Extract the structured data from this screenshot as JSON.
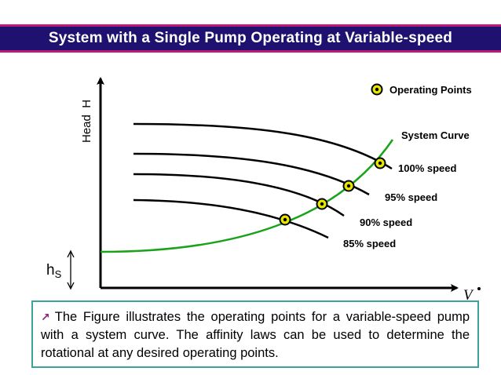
{
  "title": "System with a Single Pump Operating at Variable-speed",
  "colors": {
    "title_bg": "#1f1170",
    "title_border": "#c0177a",
    "system_curve": "#1aa31a",
    "pump_curve": "#000000",
    "point_fill": "#e6e600",
    "caption_border": "#3aa39a",
    "bullet": "#8a2576"
  },
  "diagram": {
    "y_axis_label": "Head  H",
    "x_axis_label": "V",
    "static_head_label": "h",
    "static_head_sub": "S",
    "legend_label": "Operating Points",
    "system_curve_label": "System Curve",
    "curves": [
      {
        "label": "100% speed"
      },
      {
        "label": "95% speed"
      },
      {
        "label": "90% speed"
      },
      {
        "label": "85% speed"
      }
    ]
  },
  "caption": {
    "bullet_icon": "arrow-bullet-icon",
    "text": "The Figure illustrates the operating points for a variable-speed pump with a system curve. The affinity laws can be used to determine the rotational at any desired operating points."
  }
}
